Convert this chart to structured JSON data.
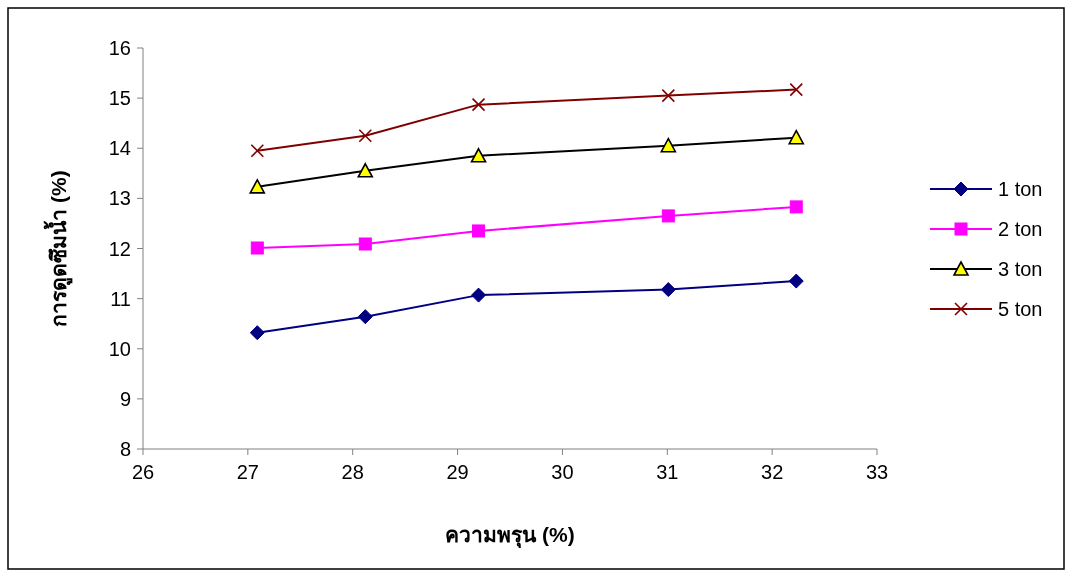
{
  "chart_data": {
    "type": "line",
    "xlabel": "ความพรุน (%)",
    "ylabel": "การดูดซึมน้ำ (%)",
    "x": [
      27.09,
      28.12,
      29.2,
      31.01,
      32.23
    ],
    "xlim": [
      26,
      33
    ],
    "xticks": [
      26,
      27,
      28,
      29,
      30,
      31,
      32,
      33
    ],
    "ylim": [
      8,
      16
    ],
    "yticks": [
      8,
      9,
      10,
      11,
      12,
      13,
      14,
      15,
      16
    ],
    "grid": false,
    "legend": "right",
    "series": [
      {
        "name": "1 ton",
        "color": "#000080",
        "marker": "diamond",
        "values": [
          10.32,
          10.64,
          11.07,
          11.18,
          11.35
        ]
      },
      {
        "name": "2 ton",
        "color": "#ff00ff",
        "marker": "square",
        "values": [
          12.01,
          12.09,
          12.35,
          12.65,
          12.83
        ]
      },
      {
        "name": "3 ton",
        "color": "#000000",
        "marker": "triangle",
        "values": [
          13.23,
          13.55,
          13.85,
          14.05,
          14.21
        ]
      },
      {
        "name": "5 ton",
        "color": "#800000",
        "marker": "cross",
        "values": [
          13.95,
          14.25,
          14.87,
          15.05,
          15.17
        ]
      }
    ]
  }
}
